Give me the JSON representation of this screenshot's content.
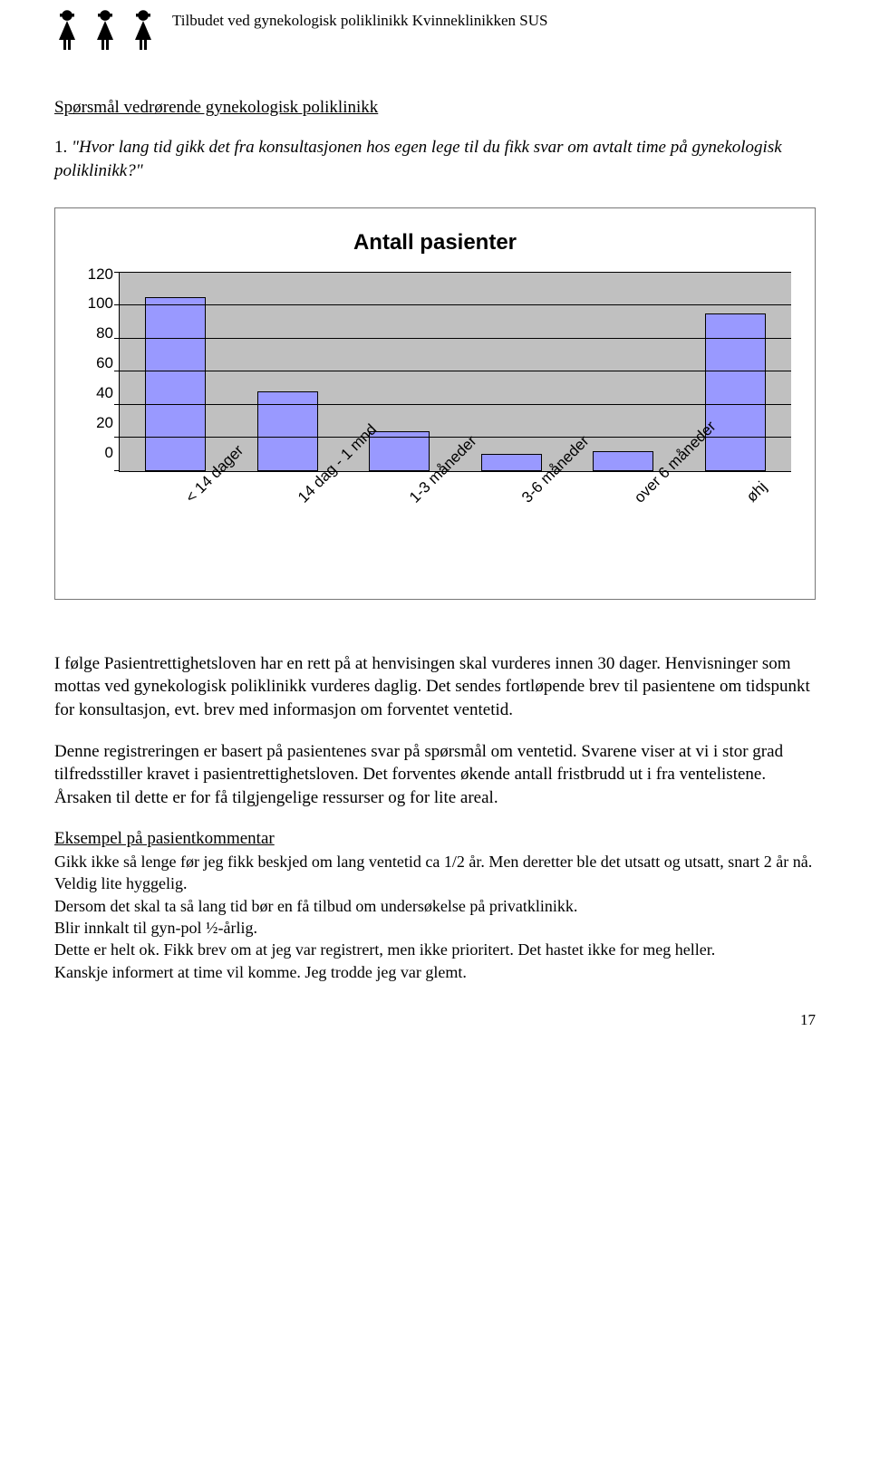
{
  "header": {
    "title": "Tilbudet ved gynekologisk poliklinikk Kvinneklinikken SUS"
  },
  "section_title": "Spørsmål vedrørende gynekologisk poliklinikk",
  "question": {
    "number_prefix": "1. ",
    "text": "\"Hvor lang tid gikk det fra konsultasjonen hos egen lege til du fikk svar om avtalt time på gynekologisk poliklinikk?\""
  },
  "chart": {
    "type": "bar",
    "title": "Antall pasienter",
    "categories": [
      "< 14 dager",
      "14 dag - 1 mnd",
      "1-3 måneder",
      "3-6 måneder",
      "over 6 måneder",
      "øhj"
    ],
    "values": [
      105,
      48,
      24,
      10,
      12,
      95
    ],
    "bar_color": "#9999ff",
    "bar_border": "#000000",
    "background_color": "#c0c0c0",
    "grid_color": "#000000",
    "ymax": 120,
    "ytick_step": 20,
    "yticks": [
      "120",
      "100",
      "80",
      "60",
      "40",
      "20",
      "0"
    ],
    "bar_width_pct": 54,
    "title_fontsize": 24,
    "label_fontsize": 17,
    "font_family": "Arial"
  },
  "paragraphs": {
    "p1": "I følge Pasientrettighetsloven har en rett på at henvisingen skal vurderes innen 30 dager. Henvisninger som mottas ved gynekologisk poliklinikk vurderes daglig. Det sendes fortløpende brev til pasientene om tidspunkt for konsultasjon, evt. brev med informasjon om forventet ventetid.",
    "p2": "Denne registreringen er basert på pasientenes svar på spørsmål om ventetid. Svarene viser at vi i stor grad tilfredsstiller kravet i pasientrettighetsloven. Det forventes økende antall fristbrudd ut i fra ventelistene. Årsaken til dette er for få tilgjengelige ressurser og for lite areal.",
    "example_heading": "Eksempel på pasientkommentar",
    "p3": "Gikk ikke så lenge før jeg fikk beskjed om lang ventetid ca 1/2 år. Men deretter ble det utsatt og utsatt, snart 2 år nå. Veldig lite hyggelig.",
    "p4": "Dersom det skal ta så lang tid bør en få tilbud om undersøkelse på privatklinikk.",
    "p5": "Blir innkalt til gyn-pol ½-årlig.",
    "p6": "Dette er helt ok. Fikk brev om at jeg var registrert, men ikke prioritert. Det hastet ikke for meg heller.",
    "p7": "Kanskje informert at time vil komme. Jeg trodde jeg var glemt."
  },
  "page_number": "17"
}
